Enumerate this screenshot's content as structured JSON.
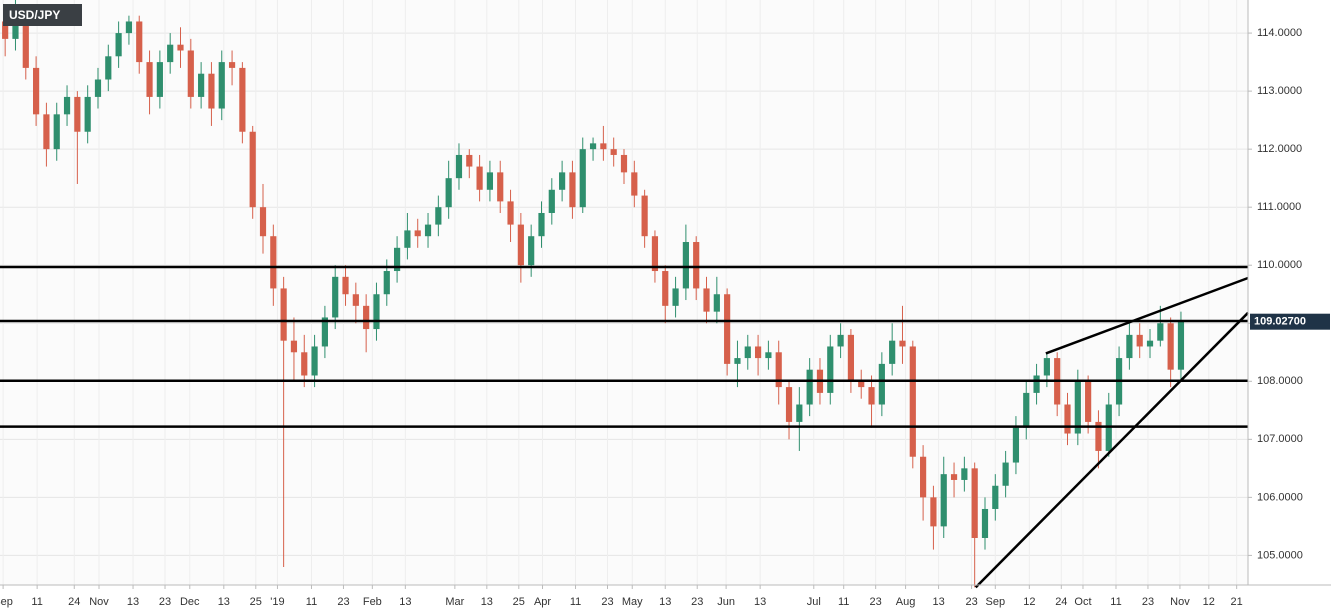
{
  "chart_data": {
    "type": "candlestick",
    "title": "USD/JPY",
    "up_color": "#2f8f6e",
    "down_color": "#d6604b",
    "grid": true,
    "candles": [
      [
        114.2,
        114.5,
        113.6,
        113.9
      ],
      [
        113.9,
        114.6,
        113.7,
        114.3
      ],
      [
        114.3,
        114.5,
        113.2,
        113.4
      ],
      [
        113.4,
        113.6,
        112.4,
        112.6
      ],
      [
        112.6,
        112.8,
        111.7,
        112.0
      ],
      [
        112.0,
        112.8,
        111.8,
        112.6
      ],
      [
        112.6,
        113.1,
        112.4,
        112.9
      ],
      [
        112.9,
        113.0,
        111.4,
        112.3
      ],
      [
        112.3,
        113.1,
        112.1,
        112.9
      ],
      [
        112.9,
        113.4,
        112.7,
        113.2
      ],
      [
        113.2,
        113.8,
        113.0,
        113.6
      ],
      [
        113.6,
        114.2,
        113.4,
        114.0
      ],
      [
        114.0,
        114.3,
        113.8,
        114.2
      ],
      [
        114.2,
        114.3,
        113.3,
        113.5
      ],
      [
        113.5,
        113.7,
        112.6,
        112.9
      ],
      [
        112.9,
        113.7,
        112.7,
        113.5
      ],
      [
        113.5,
        114.0,
        113.3,
        113.8
      ],
      [
        113.8,
        114.1,
        113.4,
        113.7
      ],
      [
        113.7,
        113.9,
        112.7,
        112.9
      ],
      [
        112.9,
        113.5,
        112.7,
        113.3
      ],
      [
        113.3,
        113.5,
        112.4,
        112.7
      ],
      [
        112.7,
        113.7,
        112.5,
        113.5
      ],
      [
        113.5,
        113.7,
        113.1,
        113.4
      ],
      [
        113.4,
        113.5,
        112.1,
        112.3
      ],
      [
        112.3,
        112.4,
        110.8,
        111.0
      ],
      [
        111.0,
        111.4,
        110.2,
        110.5
      ],
      [
        110.5,
        110.7,
        109.3,
        109.6
      ],
      [
        109.6,
        109.8,
        104.8,
        108.7
      ],
      [
        108.7,
        109.1,
        108.0,
        108.5
      ],
      [
        108.5,
        108.8,
        107.9,
        108.1
      ],
      [
        108.1,
        108.8,
        107.9,
        108.6
      ],
      [
        108.6,
        109.3,
        108.4,
        109.1
      ],
      [
        109.1,
        110.0,
        108.9,
        109.8
      ],
      [
        109.8,
        110.0,
        109.3,
        109.5
      ],
      [
        109.5,
        109.7,
        109.0,
        109.3
      ],
      [
        109.3,
        109.5,
        108.5,
        108.9
      ],
      [
        108.9,
        109.7,
        108.7,
        109.5
      ],
      [
        109.5,
        110.1,
        109.3,
        109.9
      ],
      [
        109.9,
        110.5,
        109.7,
        110.3
      ],
      [
        110.3,
        110.9,
        110.1,
        110.6
      ],
      [
        110.6,
        110.8,
        110.3,
        110.5
      ],
      [
        110.5,
        110.9,
        110.3,
        110.7
      ],
      [
        110.7,
        111.2,
        110.5,
        111.0
      ],
      [
        111.0,
        111.8,
        110.8,
        111.5
      ],
      [
        111.5,
        112.1,
        111.3,
        111.9
      ],
      [
        111.9,
        112.0,
        111.5,
        111.7
      ],
      [
        111.7,
        111.9,
        111.1,
        111.3
      ],
      [
        111.3,
        111.8,
        111.1,
        111.6
      ],
      [
        111.6,
        111.8,
        110.9,
        111.1
      ],
      [
        111.1,
        111.3,
        110.4,
        110.7
      ],
      [
        110.7,
        110.9,
        109.7,
        110.0
      ],
      [
        110.0,
        110.7,
        109.8,
        110.5
      ],
      [
        110.5,
        111.1,
        110.3,
        110.9
      ],
      [
        110.9,
        111.5,
        110.7,
        111.3
      ],
      [
        111.3,
        111.8,
        111.1,
        111.6
      ],
      [
        111.6,
        111.8,
        110.8,
        111.0
      ],
      [
        111.0,
        112.2,
        110.9,
        112.0
      ],
      [
        112.0,
        112.2,
        111.8,
        112.1
      ],
      [
        112.1,
        112.4,
        111.8,
        112.0
      ],
      [
        112.0,
        112.2,
        111.7,
        111.9
      ],
      [
        111.9,
        112.0,
        111.4,
        111.6
      ],
      [
        111.6,
        111.8,
        111.0,
        111.2
      ],
      [
        111.2,
        111.3,
        110.3,
        110.5
      ],
      [
        110.5,
        110.6,
        109.7,
        109.9
      ],
      [
        109.9,
        110.0,
        109.0,
        109.3
      ],
      [
        109.3,
        109.8,
        109.1,
        109.6
      ],
      [
        109.6,
        110.7,
        109.4,
        110.4
      ],
      [
        110.4,
        110.5,
        109.4,
        109.6
      ],
      [
        109.6,
        109.8,
        109.0,
        109.2
      ],
      [
        109.2,
        109.8,
        109.0,
        109.5
      ],
      [
        109.5,
        109.6,
        108.1,
        108.3
      ],
      [
        108.3,
        108.7,
        107.9,
        108.4
      ],
      [
        108.4,
        108.8,
        108.2,
        108.6
      ],
      [
        108.6,
        108.8,
        108.1,
        108.4
      ],
      [
        108.4,
        108.7,
        108.2,
        108.5
      ],
      [
        108.5,
        108.7,
        107.6,
        107.9
      ],
      [
        107.9,
        108.0,
        107.0,
        107.3
      ],
      [
        107.3,
        107.9,
        106.8,
        107.6
      ],
      [
        107.6,
        108.4,
        107.4,
        108.2
      ],
      [
        108.2,
        108.4,
        107.6,
        107.8
      ],
      [
        107.8,
        108.8,
        107.6,
        108.6
      ],
      [
        108.6,
        109.0,
        108.4,
        108.8
      ],
      [
        108.8,
        108.9,
        107.8,
        108.0
      ],
      [
        108.0,
        108.2,
        107.7,
        107.9
      ],
      [
        107.9,
        108.1,
        107.2,
        107.6
      ],
      [
        107.6,
        108.5,
        107.4,
        108.3
      ],
      [
        108.3,
        109.0,
        108.1,
        108.7
      ],
      [
        108.7,
        109.3,
        108.3,
        108.6
      ],
      [
        108.6,
        108.7,
        106.5,
        106.7
      ],
      [
        106.7,
        106.9,
        105.6,
        106.0
      ],
      [
        106.0,
        106.2,
        105.1,
        105.5
      ],
      [
        105.5,
        106.7,
        105.3,
        106.4
      ],
      [
        106.4,
        106.6,
        106.0,
        106.3
      ],
      [
        106.3,
        106.7,
        106.1,
        106.5
      ],
      [
        106.5,
        106.6,
        104.45,
        105.3
      ],
      [
        105.3,
        106.0,
        105.1,
        105.8
      ],
      [
        105.8,
        106.4,
        105.6,
        106.2
      ],
      [
        106.2,
        106.8,
        106.0,
        106.6
      ],
      [
        106.6,
        107.4,
        106.4,
        107.2
      ],
      [
        107.2,
        108.0,
        107.0,
        107.8
      ],
      [
        107.8,
        108.3,
        107.6,
        108.1
      ],
      [
        108.1,
        108.5,
        107.9,
        108.4
      ],
      [
        108.4,
        108.5,
        107.4,
        107.6
      ],
      [
        107.6,
        107.8,
        106.9,
        107.1
      ],
      [
        107.1,
        108.2,
        106.9,
        108.0
      ],
      [
        108.0,
        108.1,
        107.1,
        107.3
      ],
      [
        107.3,
        107.5,
        106.5,
        106.8
      ],
      [
        106.8,
        107.8,
        106.7,
        107.6
      ],
      [
        107.6,
        108.6,
        107.4,
        108.4
      ],
      [
        108.4,
        109.0,
        108.2,
        108.8
      ],
      [
        108.8,
        109.0,
        108.4,
        108.6
      ],
      [
        108.6,
        108.9,
        108.4,
        108.7
      ],
      [
        108.7,
        109.3,
        108.6,
        109.0
      ],
      [
        109.0,
        109.1,
        107.9,
        108.2
      ],
      [
        108.2,
        109.2,
        108.0,
        109.03
      ]
    ],
    "xlim": [
      0,
      121
    ],
    "xticks": [
      {
        "value": 0.3,
        "label": "Sep"
      },
      {
        "value": 3.6,
        "label": "11"
      },
      {
        "value": 7.2,
        "label": "24"
      },
      {
        "value": 9.6,
        "label": "Nov"
      },
      {
        "value": 12.9,
        "label": "13"
      },
      {
        "value": 16,
        "label": "23"
      },
      {
        "value": 18.4,
        "label": "Dec"
      },
      {
        "value": 21.7,
        "label": "13"
      },
      {
        "value": 24.8,
        "label": "25"
      },
      {
        "value": 26.9,
        "label": "'19"
      },
      {
        "value": 30.2,
        "label": "11"
      },
      {
        "value": 33.3,
        "label": "23"
      },
      {
        "value": 36.1,
        "label": "Feb"
      },
      {
        "value": 39.3,
        "label": "13"
      },
      {
        "value": 44.1,
        "label": "Mar"
      },
      {
        "value": 47.2,
        "label": "13"
      },
      {
        "value": 50.3,
        "label": "25"
      },
      {
        "value": 52.6,
        "label": "Apr"
      },
      {
        "value": 55.8,
        "label": "11"
      },
      {
        "value": 58.9,
        "label": "23"
      },
      {
        "value": 61.3,
        "label": "May"
      },
      {
        "value": 64.5,
        "label": "13"
      },
      {
        "value": 67.6,
        "label": "23"
      },
      {
        "value": 70.4,
        "label": "Jun"
      },
      {
        "value": 73.7,
        "label": "13"
      },
      {
        "value": 78.9,
        "label": "Jul"
      },
      {
        "value": 81.8,
        "label": "11"
      },
      {
        "value": 84.9,
        "label": "23"
      },
      {
        "value": 87.8,
        "label": "Aug"
      },
      {
        "value": 91,
        "label": "13"
      },
      {
        "value": 94.2,
        "label": "23"
      },
      {
        "value": 96.5,
        "label": "Sep"
      },
      {
        "value": 99.8,
        "label": "12"
      },
      {
        "value": 102.9,
        "label": "24"
      },
      {
        "value": 105,
        "label": "Oct"
      },
      {
        "value": 108.2,
        "label": "11"
      },
      {
        "value": 111.3,
        "label": "23"
      },
      {
        "value": 114.4,
        "label": "Nov"
      },
      {
        "value": 117.2,
        "label": "12"
      },
      {
        "value": 119.9,
        "label": "21"
      }
    ],
    "ylim": [
      104.49,
      114.57
    ],
    "yticks": [
      {
        "value": 105,
        "label": "105.0000"
      },
      {
        "value": 106,
        "label": "106.0000"
      },
      {
        "value": 107,
        "label": "107.0000"
      },
      {
        "value": 108,
        "label": "108.0000"
      },
      {
        "value": 109,
        "label": "109.0000"
      },
      {
        "value": 110,
        "label": "110.0000"
      },
      {
        "value": 111,
        "label": "111.0000"
      },
      {
        "value": 112,
        "label": "112.0000"
      },
      {
        "value": 113,
        "label": "113.0000"
      },
      {
        "value": 114,
        "label": "114.0000"
      }
    ],
    "hlines": [
      109.97,
      109.04,
      108.01,
      107.22
    ],
    "trendlines": [
      {
        "x": [
          94.6,
          121
        ],
        "y": [
          104.45,
          109.18
        ]
      },
      {
        "x": [
          101.4,
          121
        ],
        "y": [
          108.48,
          109.78
        ]
      }
    ],
    "last_price": {
      "value": 109.027,
      "label": "109.02700"
    }
  }
}
